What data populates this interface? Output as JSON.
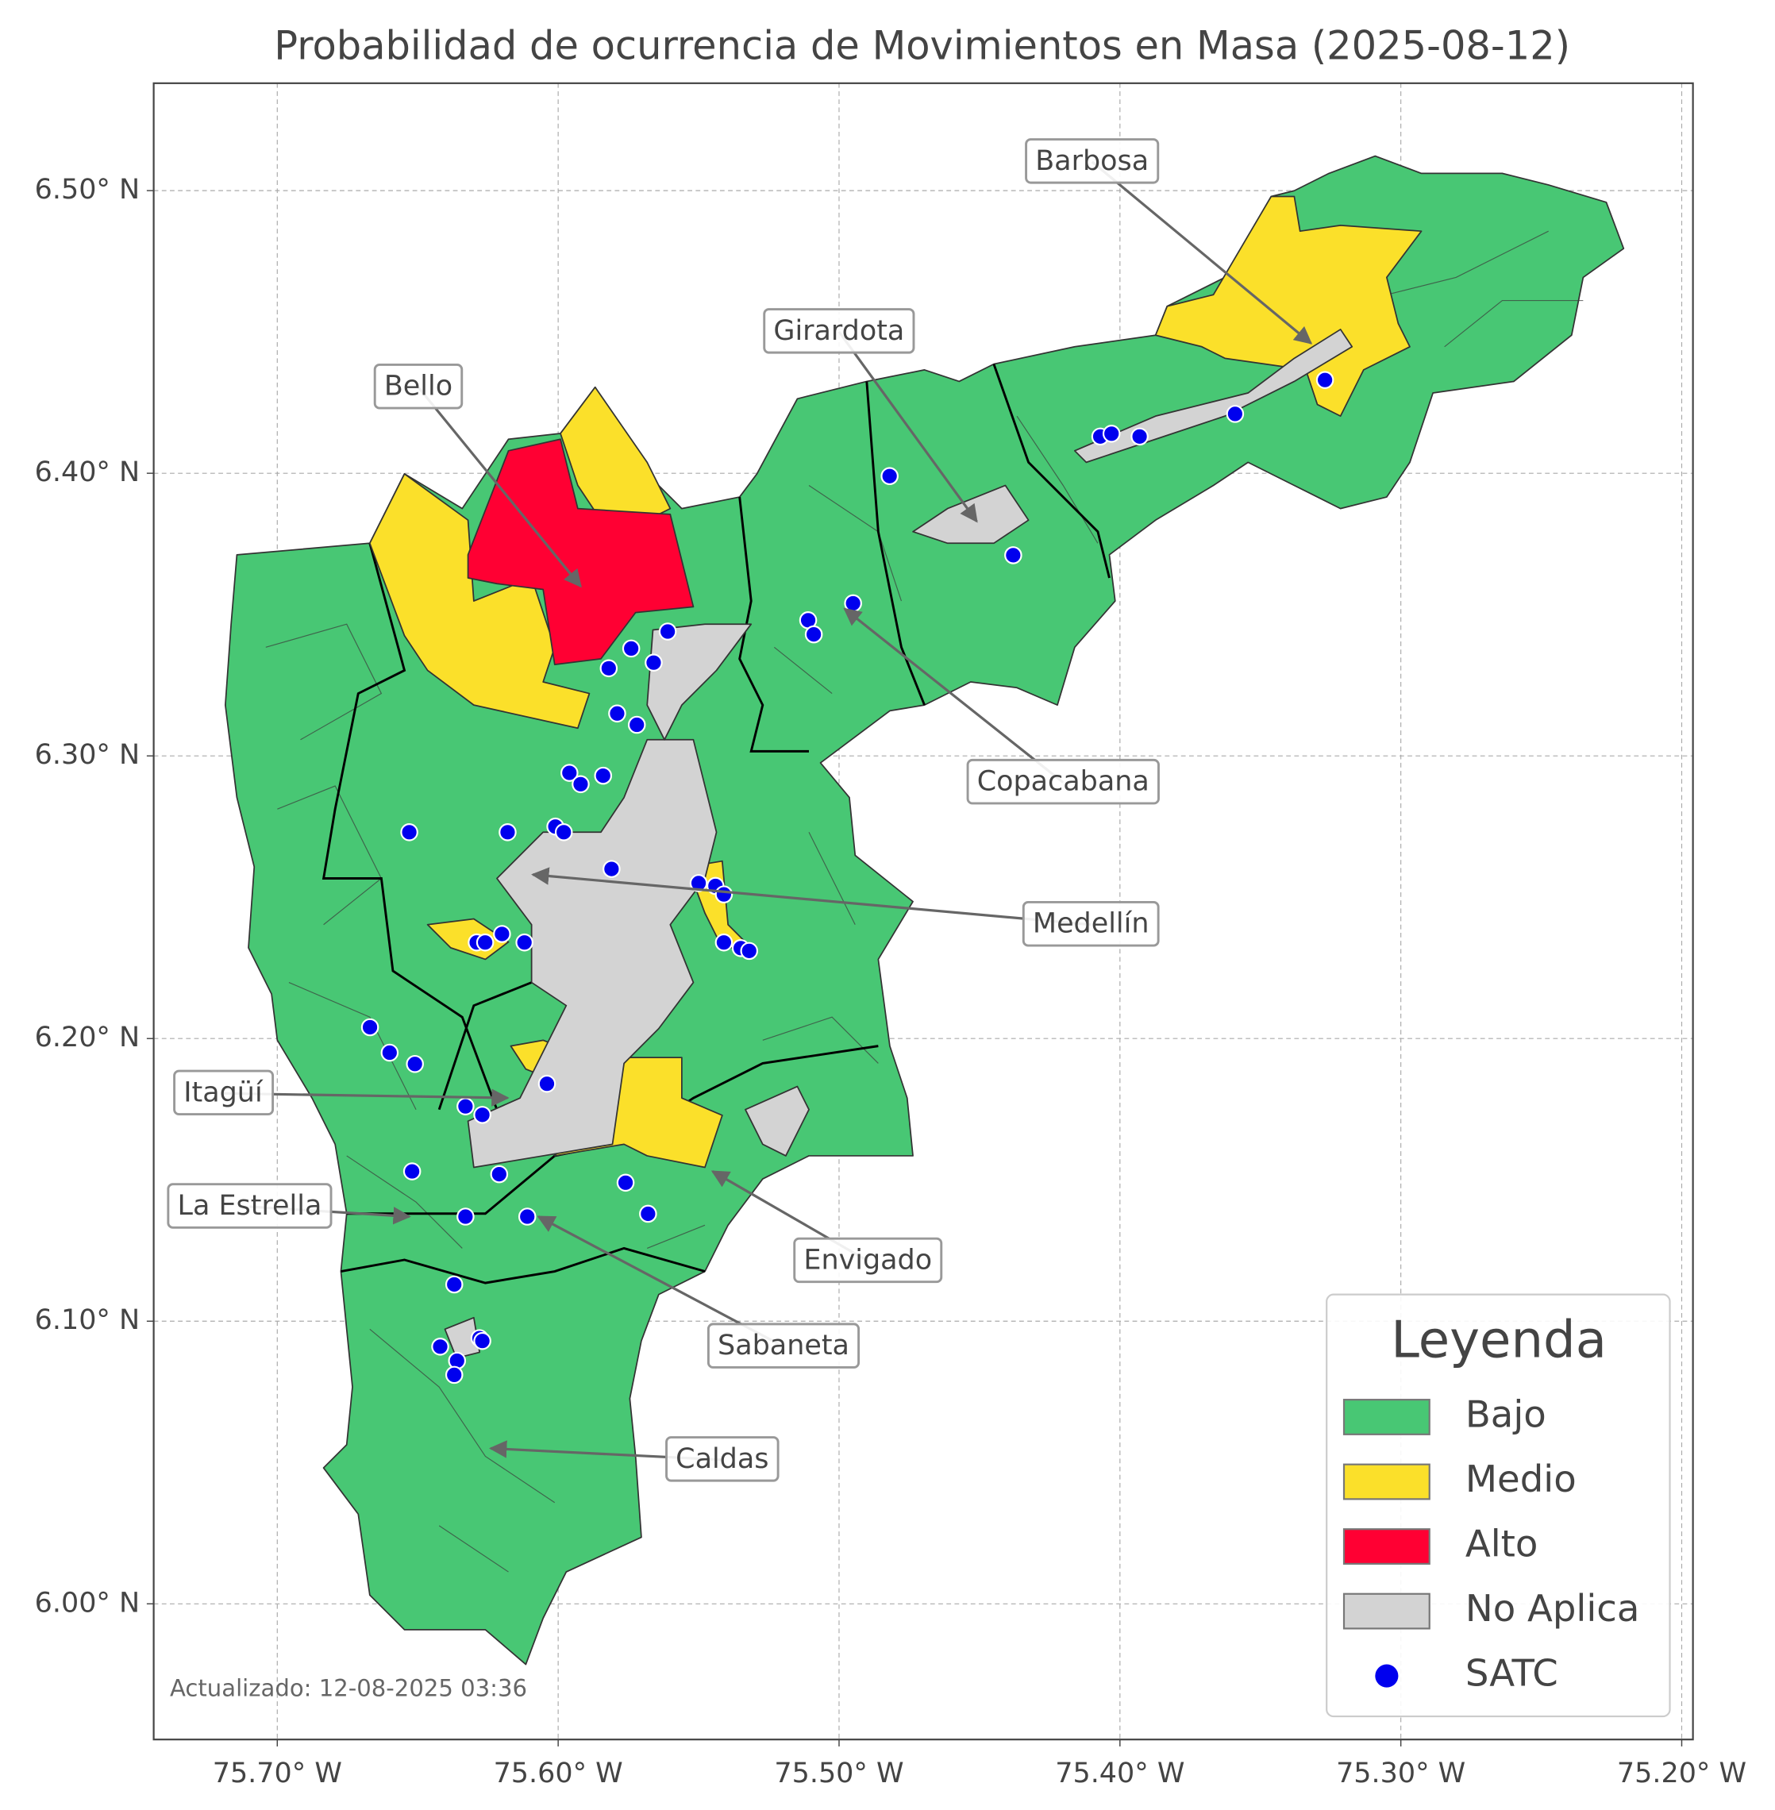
{
  "map_data": {
    "title": "Probabilidad de ocurrencia de Movimientos en Masa (2025-08-12)",
    "xlim": [
      -75.744,
      -75.196
    ],
    "ylim": [
      5.952,
      6.538
    ],
    "xticks": [
      {
        "value": -75.7,
        "label": "75.70° W"
      },
      {
        "value": -75.6,
        "label": "75.60° W"
      },
      {
        "value": -75.5,
        "label": "75.50° W"
      },
      {
        "value": -75.4,
        "label": "75.40° W"
      },
      {
        "value": -75.3,
        "label": "75.30° W"
      },
      {
        "value": -75.2,
        "label": "75.20° W"
      }
    ],
    "yticks": [
      {
        "value": 6.0,
        "label": "6.00° N"
      },
      {
        "value": 6.1,
        "label": "6.10° N"
      },
      {
        "value": 6.2,
        "label": "6.20° N"
      },
      {
        "value": 6.3,
        "label": "6.30° N"
      },
      {
        "value": 6.4,
        "label": "6.40° N"
      },
      {
        "value": 6.5,
        "label": "6.50° N"
      }
    ],
    "grid": true,
    "legend": {
      "title": "Leyenda",
      "entries": [
        {
          "label": "Bajo",
          "color": "#48c774"
        },
        {
          "label": "Medio",
          "color": "#fbe02a"
        },
        {
          "label": "Alto",
          "color": "#ff0033"
        },
        {
          "label": "No Aplica",
          "color": "#d3d3d3"
        },
        {
          "label": "SATC",
          "color": "#0000ee"
        }
      ]
    },
    "satc_points": {
      "lon": [
        -75.482,
        -75.407,
        -75.403,
        -75.393,
        -75.359,
        -75.327,
        -75.438,
        -75.495,
        -75.511,
        -75.509,
        -75.561,
        -75.574,
        -75.566,
        -75.582,
        -75.579,
        -75.572,
        -75.596,
        -75.592,
        -75.584,
        -75.653,
        -75.618,
        -75.601,
        -75.598,
        -75.581,
        -75.55,
        -75.544,
        -75.541,
        -75.629,
        -75.626,
        -75.62,
        -75.612,
        -75.541,
        -75.535,
        -75.532,
        -75.667,
        -75.66,
        -75.651,
        -75.604,
        -75.633,
        -75.627,
        -75.652,
        -75.621,
        -75.633,
        -75.611,
        -75.576,
        -75.568,
        -75.637,
        -75.642,
        -75.628,
        -75.627,
        -75.636,
        -75.637
      ],
      "lat": [
        6.399,
        6.413,
        6.414,
        6.413,
        6.421,
        6.433,
        6.371,
        6.354,
        6.348,
        6.343,
        6.344,
        6.338,
        6.333,
        6.331,
        6.315,
        6.311,
        6.294,
        6.29,
        6.293,
        6.273,
        6.273,
        6.275,
        6.273,
        6.26,
        6.255,
        6.254,
        6.251,
        6.234,
        6.234,
        6.237,
        6.234,
        6.234,
        6.232,
        6.231,
        6.204,
        6.195,
        6.191,
        6.184,
        6.176,
        6.173,
        6.153,
        6.152,
        6.137,
        6.137,
        6.149,
        6.138,
        6.113,
        6.091,
        6.094,
        6.093,
        6.086,
        6.081
      ]
    },
    "annotations": [
      {
        "text": "Barbosa",
        "lon": -75.332,
        "lat": 6.446
      },
      {
        "text": "Girardota",
        "lon": -75.451,
        "lat": 6.383
      },
      {
        "text": "Bello",
        "lon": -75.592,
        "lat": 6.36
      },
      {
        "text": "Copacabana",
        "lon": -75.498,
        "lat": 6.352
      },
      {
        "text": "Medellín",
        "lon": -75.609,
        "lat": 6.258
      },
      {
        "text": "Itagüí",
        "lon": -75.618,
        "lat": 6.179
      },
      {
        "text": "La Estrella",
        "lon": -75.653,
        "lat": 6.137
      },
      {
        "text": "Envigado",
        "lon": -75.545,
        "lat": 6.153
      },
      {
        "text": "Sabaneta",
        "lon": -75.607,
        "lat": 6.137
      },
      {
        "text": "Caldas",
        "lon": -75.624,
        "lat": 6.055
      }
    ],
    "footer": "Actualizado: 12-08-2025 03:36"
  }
}
